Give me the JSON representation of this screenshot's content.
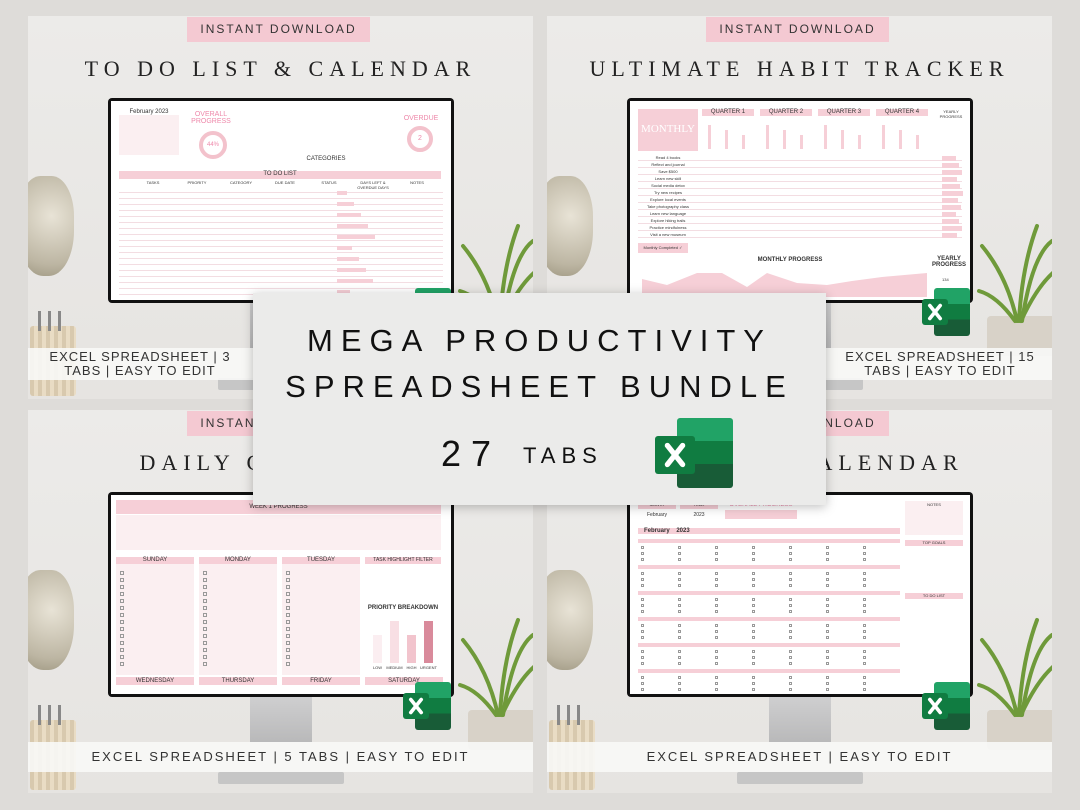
{
  "panels": [
    {
      "badge": "INSTANT DOWNLOAD",
      "title": "TO DO LIST & CALENDAR",
      "footer": "EXCEL SPREADSHEET | 3 TABS | EASY TO EDIT",
      "screen": {
        "month": "February 2023",
        "overall": "OVERALL PROGRESS",
        "overall_value": "44%",
        "overdue": "OVERDUE",
        "overdue_value": "2",
        "list_title": "TO DO LIST",
        "categories": "CATEGORIES",
        "columns": [
          "TASKS",
          "PRIORITY",
          "CATEGORY",
          "DUE DATE",
          "STATUS",
          "DAYS LEFT & OVERDUE DAYS",
          "NOTES"
        ]
      }
    },
    {
      "badge": "INSTANT DOWNLOAD",
      "title": "ULTIMATE HABIT TRACKER",
      "footer": "EXCEL SPREADSHEET | 15 TABS | EASY TO EDIT",
      "screen": {
        "logo": "MONTHLY",
        "quarters": [
          "QUARTER 1",
          "QUARTER 2",
          "QUARTER 3",
          "QUARTER 4"
        ],
        "yearly": "YEARLY PROGRESS",
        "habits": [
          "Read 4 books",
          "Reflect and journal",
          "Save $500",
          "Learn new skill",
          "Social media detox",
          "Try new recipes",
          "Explore local events",
          "Take photography class",
          "Learn new language",
          "Explore hiking trails",
          "Practice mindfulness",
          "Visit a new museum"
        ],
        "monthly_completed": "Monthly Completed ✓",
        "monthly_progress": "MONTHLY PROGRESS",
        "yearly_progress": "YEARLY PROGRESS",
        "yearly_total": "134"
      }
    },
    {
      "badge": "INSTANT DOWNLOAD",
      "title": "DAILY CHECKLIST",
      "footer": "EXCEL SPREADSHEET | 5 TABS | EASY TO EDIT",
      "screen": {
        "week": "WEEK 1 PROGRESS",
        "days": [
          "SUNDAY",
          "MONDAY",
          "TUESDAY"
        ],
        "bottom_days": [
          "WEDNESDAY",
          "THURSDAY",
          "FRIDAY",
          "SATURDAY"
        ],
        "filter": "TASK HIGHLIGHT FILTER",
        "breakdown": "PRIORITY BREAKDOWN",
        "bars": [
          {
            "label": "LOW",
            "value": 4
          },
          {
            "label": "MEDIUM",
            "value": 6
          },
          {
            "label": "HIGH",
            "value": 4
          },
          {
            "label": "URGENT",
            "value": 6
          }
        ]
      }
    },
    {
      "badge": "INSTANT DOWNLOAD",
      "title": "MONTHLY CALENDAR",
      "footer": "EXCEL SPREADSHEET | EASY TO EDIT",
      "screen": {
        "month_label": "MONTH",
        "month": "February",
        "year_label": "YEAR",
        "year": "2023",
        "overall": "OVERALL PROGRESS",
        "notes": "NOTES",
        "top_goals": "TOP GOALS",
        "todo": "TO DO LIST",
        "heading": "February    2023"
      }
    }
  ],
  "center": {
    "line1": "MEGA PRODUCTIVITY",
    "line2": "SPREADSHEET BUNDLE",
    "count": "27",
    "tabs": "TABS"
  },
  "colors": {
    "pink": "#f6cfd7",
    "excel_green": "#107c41"
  }
}
